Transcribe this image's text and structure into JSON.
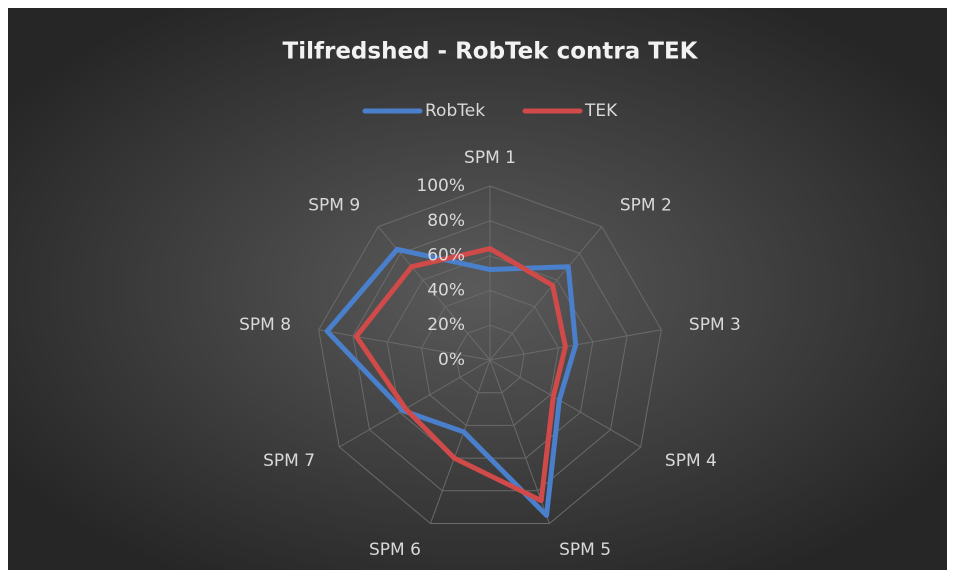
{
  "chart_data": {
    "type": "radar",
    "title": "Tilfredshed - RobTek contra TEK",
    "categories": [
      "SPM 1",
      "SPM 2",
      "SPM 3",
      "SPM 4",
      "SPM 5",
      "SPM 6",
      "SPM 7",
      "SPM 8",
      "SPM 9"
    ],
    "series": [
      {
        "name": "RobTek",
        "color": "#4a7fcb",
        "values": [
          52,
          70,
          50,
          46,
          95,
          44,
          58,
          95,
          83
        ]
      },
      {
        "name": "TEK",
        "color": "#d04a4a",
        "values": [
          64,
          56,
          44,
          42,
          86,
          60,
          56,
          78,
          70
        ]
      }
    ],
    "ylim": [
      0,
      100
    ],
    "yticks": [
      {
        "value": 0,
        "label": "0%"
      },
      {
        "value": 20,
        "label": "20%"
      },
      {
        "value": 40,
        "label": "40%"
      },
      {
        "value": 60,
        "label": "60%"
      },
      {
        "value": 80,
        "label": "80%"
      },
      {
        "value": 100,
        "label": "100%"
      }
    ],
    "legend": "top",
    "grid": true
  }
}
